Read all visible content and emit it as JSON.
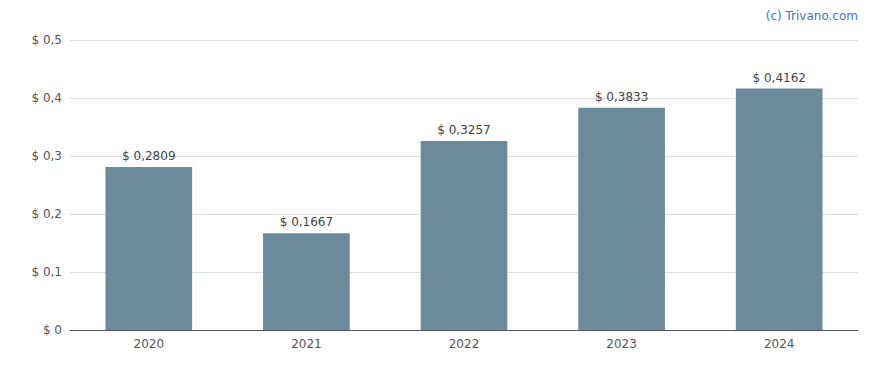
{
  "chart_data": {
    "type": "bar",
    "categories": [
      "2020",
      "2021",
      "2022",
      "2023",
      "2024"
    ],
    "values": [
      0.2809,
      0.1667,
      0.3257,
      0.3833,
      0.4162
    ],
    "value_labels": [
      "$ 0,2809",
      "$ 0,1667",
      "$ 0,3257",
      "$ 0,3833",
      "$ 0,4162"
    ],
    "data_labels": true,
    "color": "#6b8a9a",
    "ylim": [
      0,
      0.5
    ],
    "yticks": [
      {
        "value": 0.0,
        "label": "$ 0"
      },
      {
        "value": 0.1,
        "label": "$ 0,1"
      },
      {
        "value": 0.2,
        "label": "$ 0,2"
      },
      {
        "value": 0.3,
        "label": "$ 0,3"
      },
      {
        "value": 0.4,
        "label": "$ 0,4"
      },
      {
        "value": 0.5,
        "label": "$ 0,5"
      }
    ],
    "grid": true,
    "annotations": [
      "(c) Trivano.com"
    ]
  }
}
